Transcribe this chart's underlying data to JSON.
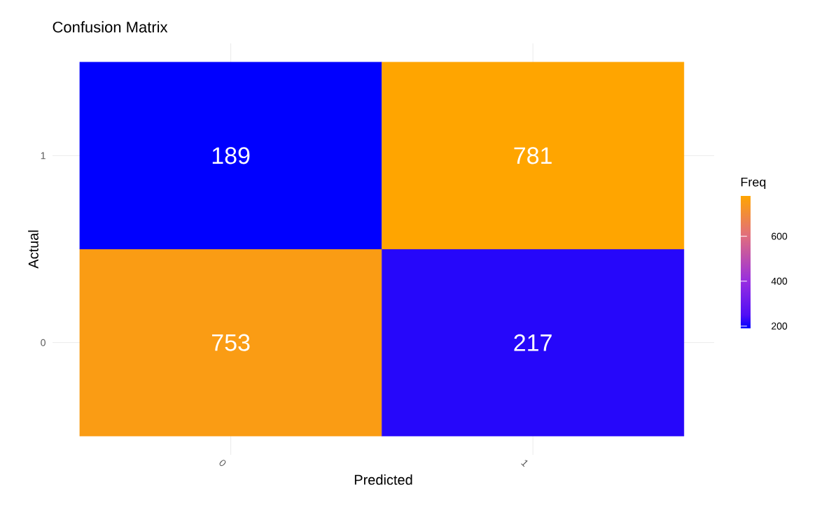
{
  "chart_data": {
    "type": "heatmap",
    "title": "Confusion Matrix",
    "xlabel": "Predicted",
    "ylabel": "Actual",
    "clabel": "Freq",
    "categories": [
      "0",
      "1"
    ],
    "y_categories": [
      "1",
      "0"
    ],
    "cells": [
      [
        189,
        781
      ],
      [
        753,
        217
      ]
    ],
    "clim": [
      189,
      781
    ],
    "cticks": [
      200,
      400,
      600
    ],
    "data_labels": true,
    "grid": true
  }
}
